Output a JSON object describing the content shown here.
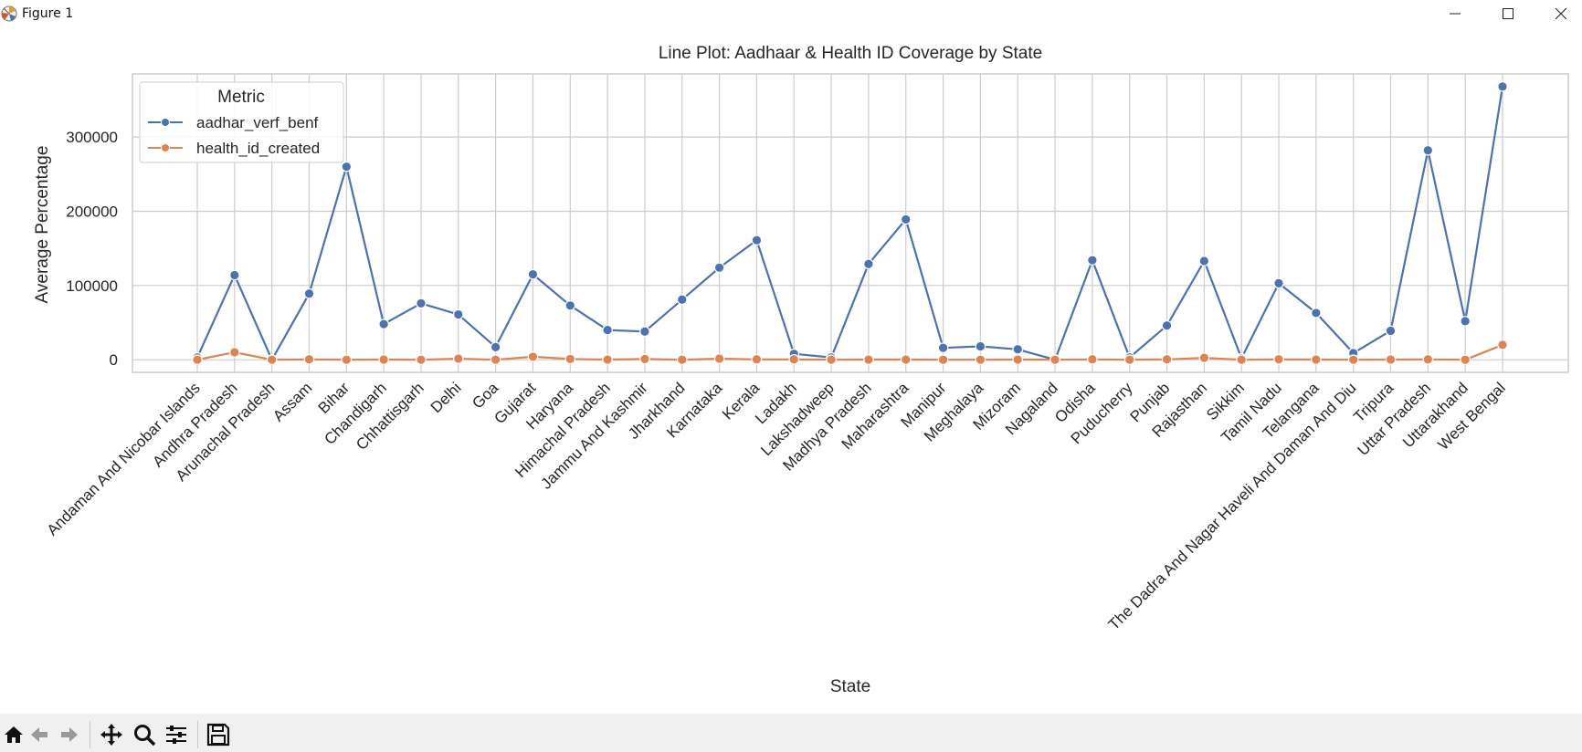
{
  "window": {
    "title": "Figure 1"
  },
  "toolbar": {
    "icons": [
      "home-icon",
      "back-arrow-icon",
      "forward-arrow-icon",
      "pan-icon",
      "zoom-icon",
      "configure-subplots-icon",
      "save-icon"
    ]
  },
  "colors": {
    "series_1": "#4c72b0",
    "series_2": "#dd8452",
    "grid": "#cccccc",
    "frame": "#cccccc"
  },
  "chart_data": {
    "type": "line",
    "title": "Line Plot: Aadhaar & Health ID Coverage by State",
    "xlabel": "State",
    "ylabel": "Average Percentage",
    "ylim": [
      -17000,
      385000
    ],
    "yticks": [
      0,
      100000,
      200000,
      300000
    ],
    "grid": true,
    "legend": {
      "title": "Metric",
      "placement": "top-left"
    },
    "categories": [
      "Andaman And Nicobar Islands",
      "Andhra Pradesh",
      "Arunachal Pradesh",
      "Assam",
      "Bihar",
      "Chandigarh",
      "Chhattisgarh",
      "Delhi",
      "Goa",
      "Gujarat",
      "Haryana",
      "Himachal Pradesh",
      "Jammu And Kashmir",
      "Jharkhand",
      "Karnataka",
      "Kerala",
      "Ladakh",
      "Lakshadweep",
      "Madhya Pradesh",
      "Maharashtra",
      "Manipur",
      "Meghalaya",
      "Mizoram",
      "Nagaland",
      "Odisha",
      "Puducherry",
      "Punjab",
      "Rajasthan",
      "Sikkim",
      "Tamil Nadu",
      "Telangana",
      "The Dadra And Nagar Haveli And Daman And Diu",
      "Tripura",
      "Uttar Pradesh",
      "Uttarakhand",
      "West Bengal"
    ],
    "series": [
      {
        "name": "aadhar_verf_benf",
        "values": [
          3000,
          114000,
          0,
          89000,
          260000,
          48000,
          76000,
          61000,
          17000,
          115000,
          73000,
          40000,
          38000,
          81000,
          124000,
          161000,
          8000,
          3000,
          129000,
          189000,
          16000,
          18000,
          14000,
          0,
          134000,
          3000,
          46000,
          133000,
          2000,
          103000,
          63000,
          9000,
          39000,
          282000,
          52000,
          368000
        ]
      },
      {
        "name": "health_id_created",
        "values": [
          0,
          10000,
          0,
          500,
          0,
          200,
          0,
          1500,
          0,
          4000,
          1000,
          200,
          1000,
          0,
          1500,
          500,
          500,
          0,
          200,
          200,
          0,
          0,
          200,
          0,
          500,
          0,
          500,
          2500,
          0,
          500,
          200,
          0,
          200,
          500,
          0,
          20000
        ]
      }
    ]
  }
}
